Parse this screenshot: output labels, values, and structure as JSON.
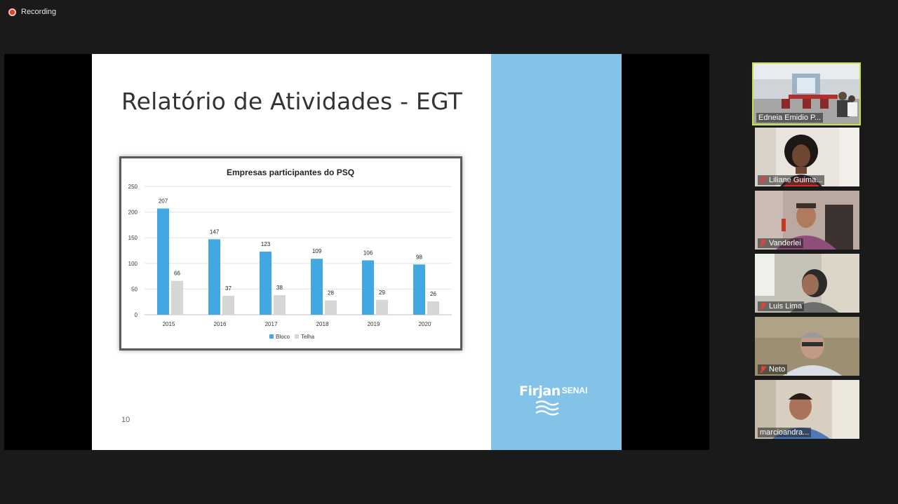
{
  "recording": {
    "label": "Recording"
  },
  "slide": {
    "title": "Relatório de Atividades - EGT",
    "page_number": "10",
    "logo": {
      "brand": "Firjan",
      "sub": "SENAI"
    }
  },
  "chart_data": {
    "type": "bar",
    "title": "Empresas participantes do PSQ",
    "categories": [
      "2015",
      "2016",
      "2017",
      "2018",
      "2019",
      "2020"
    ],
    "series": [
      {
        "name": "Bloco",
        "values": [
          207,
          147,
          123,
          109,
          106,
          98
        ],
        "color": "#41a8e1"
      },
      {
        "name": "Telha",
        "values": [
          66,
          37,
          38,
          28,
          29,
          26
        ],
        "color": "#d6d6d6"
      }
    ],
    "ylim": [
      0,
      250
    ],
    "yticks": [
      0,
      50,
      100,
      150,
      200,
      250
    ],
    "grid": true,
    "legend": "bottom"
  },
  "participants": [
    {
      "name": "Edneia Emidio P...",
      "muted": false,
      "active": true,
      "scene": "room"
    },
    {
      "name": "Liliane Guima...",
      "muted": true,
      "active": false,
      "scene": "woman"
    },
    {
      "name": "Vanderlei",
      "muted": true,
      "active": false,
      "scene": "man-headset"
    },
    {
      "name": "Luis Lima",
      "muted": true,
      "active": false,
      "scene": "man-window"
    },
    {
      "name": "Neto",
      "muted": true,
      "active": false,
      "scene": "man-glasses"
    },
    {
      "name": "marcioandra...",
      "muted": false,
      "active": false,
      "scene": "man-office"
    }
  ]
}
